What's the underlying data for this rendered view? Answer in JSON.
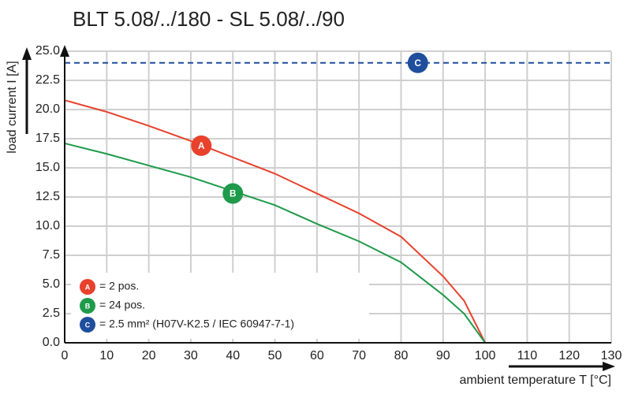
{
  "chart_data": {
    "type": "line",
    "title": "BLT 5.08/../180 - SL 5.08/../90",
    "x_label": "ambient temperature T [°C]",
    "y_label": "load current I [A]",
    "x": [
      0,
      10,
      20,
      30,
      40,
      50,
      60,
      70,
      80,
      90,
      95,
      100
    ],
    "series": [
      {
        "name": "= 2 pos.",
        "marker": "A",
        "color": "#e8412c",
        "marker_x": 32.5,
        "marker_y": 16.9,
        "values": [
          20.8,
          19.8,
          18.6,
          17.3,
          15.9,
          14.5,
          12.8,
          11.1,
          9.1,
          5.7,
          3.6,
          0
        ]
      },
      {
        "name": "= 24 pos.",
        "marker": "B",
        "color": "#1e9a4a",
        "marker_x": 40,
        "marker_y": 12.8,
        "values": [
          17.1,
          16.2,
          15.2,
          14.2,
          13.0,
          11.8,
          10.2,
          8.7,
          6.9,
          4.1,
          2.5,
          0
        ]
      }
    ],
    "reference_line": {
      "name": "= 2.5 mm² (H07V-K2.5 / IEC 60947-7-1)",
      "marker": "C",
      "color": "#1f4e9c",
      "value": 24,
      "marker_x": 84,
      "dashed": true
    },
    "xlim": [
      0,
      130
    ],
    "xticks": [
      0,
      10,
      20,
      30,
      40,
      50,
      60,
      70,
      80,
      90,
      100,
      110,
      120,
      130
    ],
    "ylim": [
      0,
      25
    ],
    "yticks": [
      {
        "value": 0,
        "label": "0.0"
      },
      {
        "value": 2.5,
        "label": "2.5"
      },
      {
        "value": 5,
        "label": "5.0"
      },
      {
        "value": 7.5,
        "label": "7.5"
      },
      {
        "value": 10,
        "label": "10.0"
      },
      {
        "value": 12.5,
        "label": "12.5"
      },
      {
        "value": 15,
        "label": "15.0"
      },
      {
        "value": 17.5,
        "label": "17.5"
      },
      {
        "value": 20,
        "label": "20.0"
      },
      {
        "value": 22.5,
        "label": "22.5"
      },
      {
        "value": 25,
        "label": "25.0"
      }
    ],
    "grid": true,
    "legend": "lower left"
  }
}
